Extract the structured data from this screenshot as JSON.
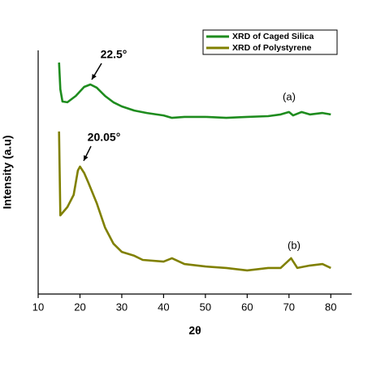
{
  "chart_data": {
    "type": "line",
    "x_label": "2θ",
    "y_label": "Intensity (a.u)",
    "xlim": [
      10,
      85
    ],
    "xticks": [
      10,
      20,
      30,
      40,
      50,
      60,
      70,
      80
    ],
    "ylim": [
      0,
      100
    ],
    "legend": "upper right",
    "series": [
      {
        "name": "XRD of Caged Silica",
        "color": "#1e8c1e",
        "x": [
          15,
          15.3,
          15.8,
          17,
          19,
          21,
          22.5,
          24,
          26,
          28,
          30,
          33,
          36,
          40,
          42,
          45,
          50,
          55,
          60,
          65,
          68,
          70,
          71,
          73,
          75,
          78,
          80
        ],
        "values": [
          95,
          84,
          79,
          78.7,
          81.3,
          85,
          86,
          84.7,
          81.3,
          78.7,
          77,
          75.3,
          74.3,
          73.3,
          72.3,
          72.7,
          72.7,
          72.3,
          72.7,
          73,
          73.7,
          74.7,
          73.3,
          74.7,
          73.7,
          74.3,
          73.7
        ]
      },
      {
        "name": "XRD of Polystyrene",
        "color": "#808000",
        "x": [
          15,
          15.3,
          17,
          18.5,
          19.5,
          20,
          21,
          22,
          24,
          26,
          28,
          30,
          33,
          35,
          40,
          42,
          45,
          50,
          55,
          60,
          65,
          68,
          70.5,
          72,
          75,
          78,
          80
        ],
        "values": [
          66.7,
          32.3,
          35.7,
          40.7,
          50.7,
          52.3,
          49.7,
          45.7,
          37.3,
          27.3,
          20.7,
          17.3,
          15.7,
          14,
          13.3,
          14.7,
          12.3,
          11.3,
          10.7,
          9.7,
          10.7,
          10.7,
          14.7,
          10.7,
          11.7,
          12.3,
          10.7
        ]
      }
    ],
    "annotations": [
      "22.5°",
      "20.05°",
      "(a)",
      "(b)"
    ]
  }
}
